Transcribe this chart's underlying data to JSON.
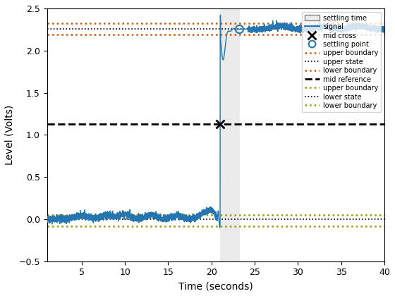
{
  "xlabel": "Time (seconds)",
  "ylabel": "Level (Volts)",
  "xlim": [
    1,
    40
  ],
  "ylim": [
    -0.5,
    2.5
  ],
  "xticks": [
    5,
    10,
    15,
    20,
    25,
    30,
    35,
    40
  ],
  "yticks": [
    -0.5,
    0.0,
    0.5,
    1.0,
    1.5,
    2.0,
    2.5
  ],
  "upper_state": 2.255,
  "lower_state": 0.0,
  "mid_reference": 1.13,
  "upper_boundary_upper": 2.32,
  "lower_boundary_upper": 2.19,
  "upper_boundary_lower": 0.05,
  "lower_boundary_lower": -0.08,
  "transition_time": 21.0,
  "settle_time": 23.2,
  "upper_state_color": "#000000",
  "lower_state_color": "#000000",
  "upper_boundary_color": "#d45500",
  "lower_boundary_color": "#999900",
  "mid_ref_color": "#000000",
  "signal_color": "#2475b0",
  "settle_region_color": "#ebebeb"
}
